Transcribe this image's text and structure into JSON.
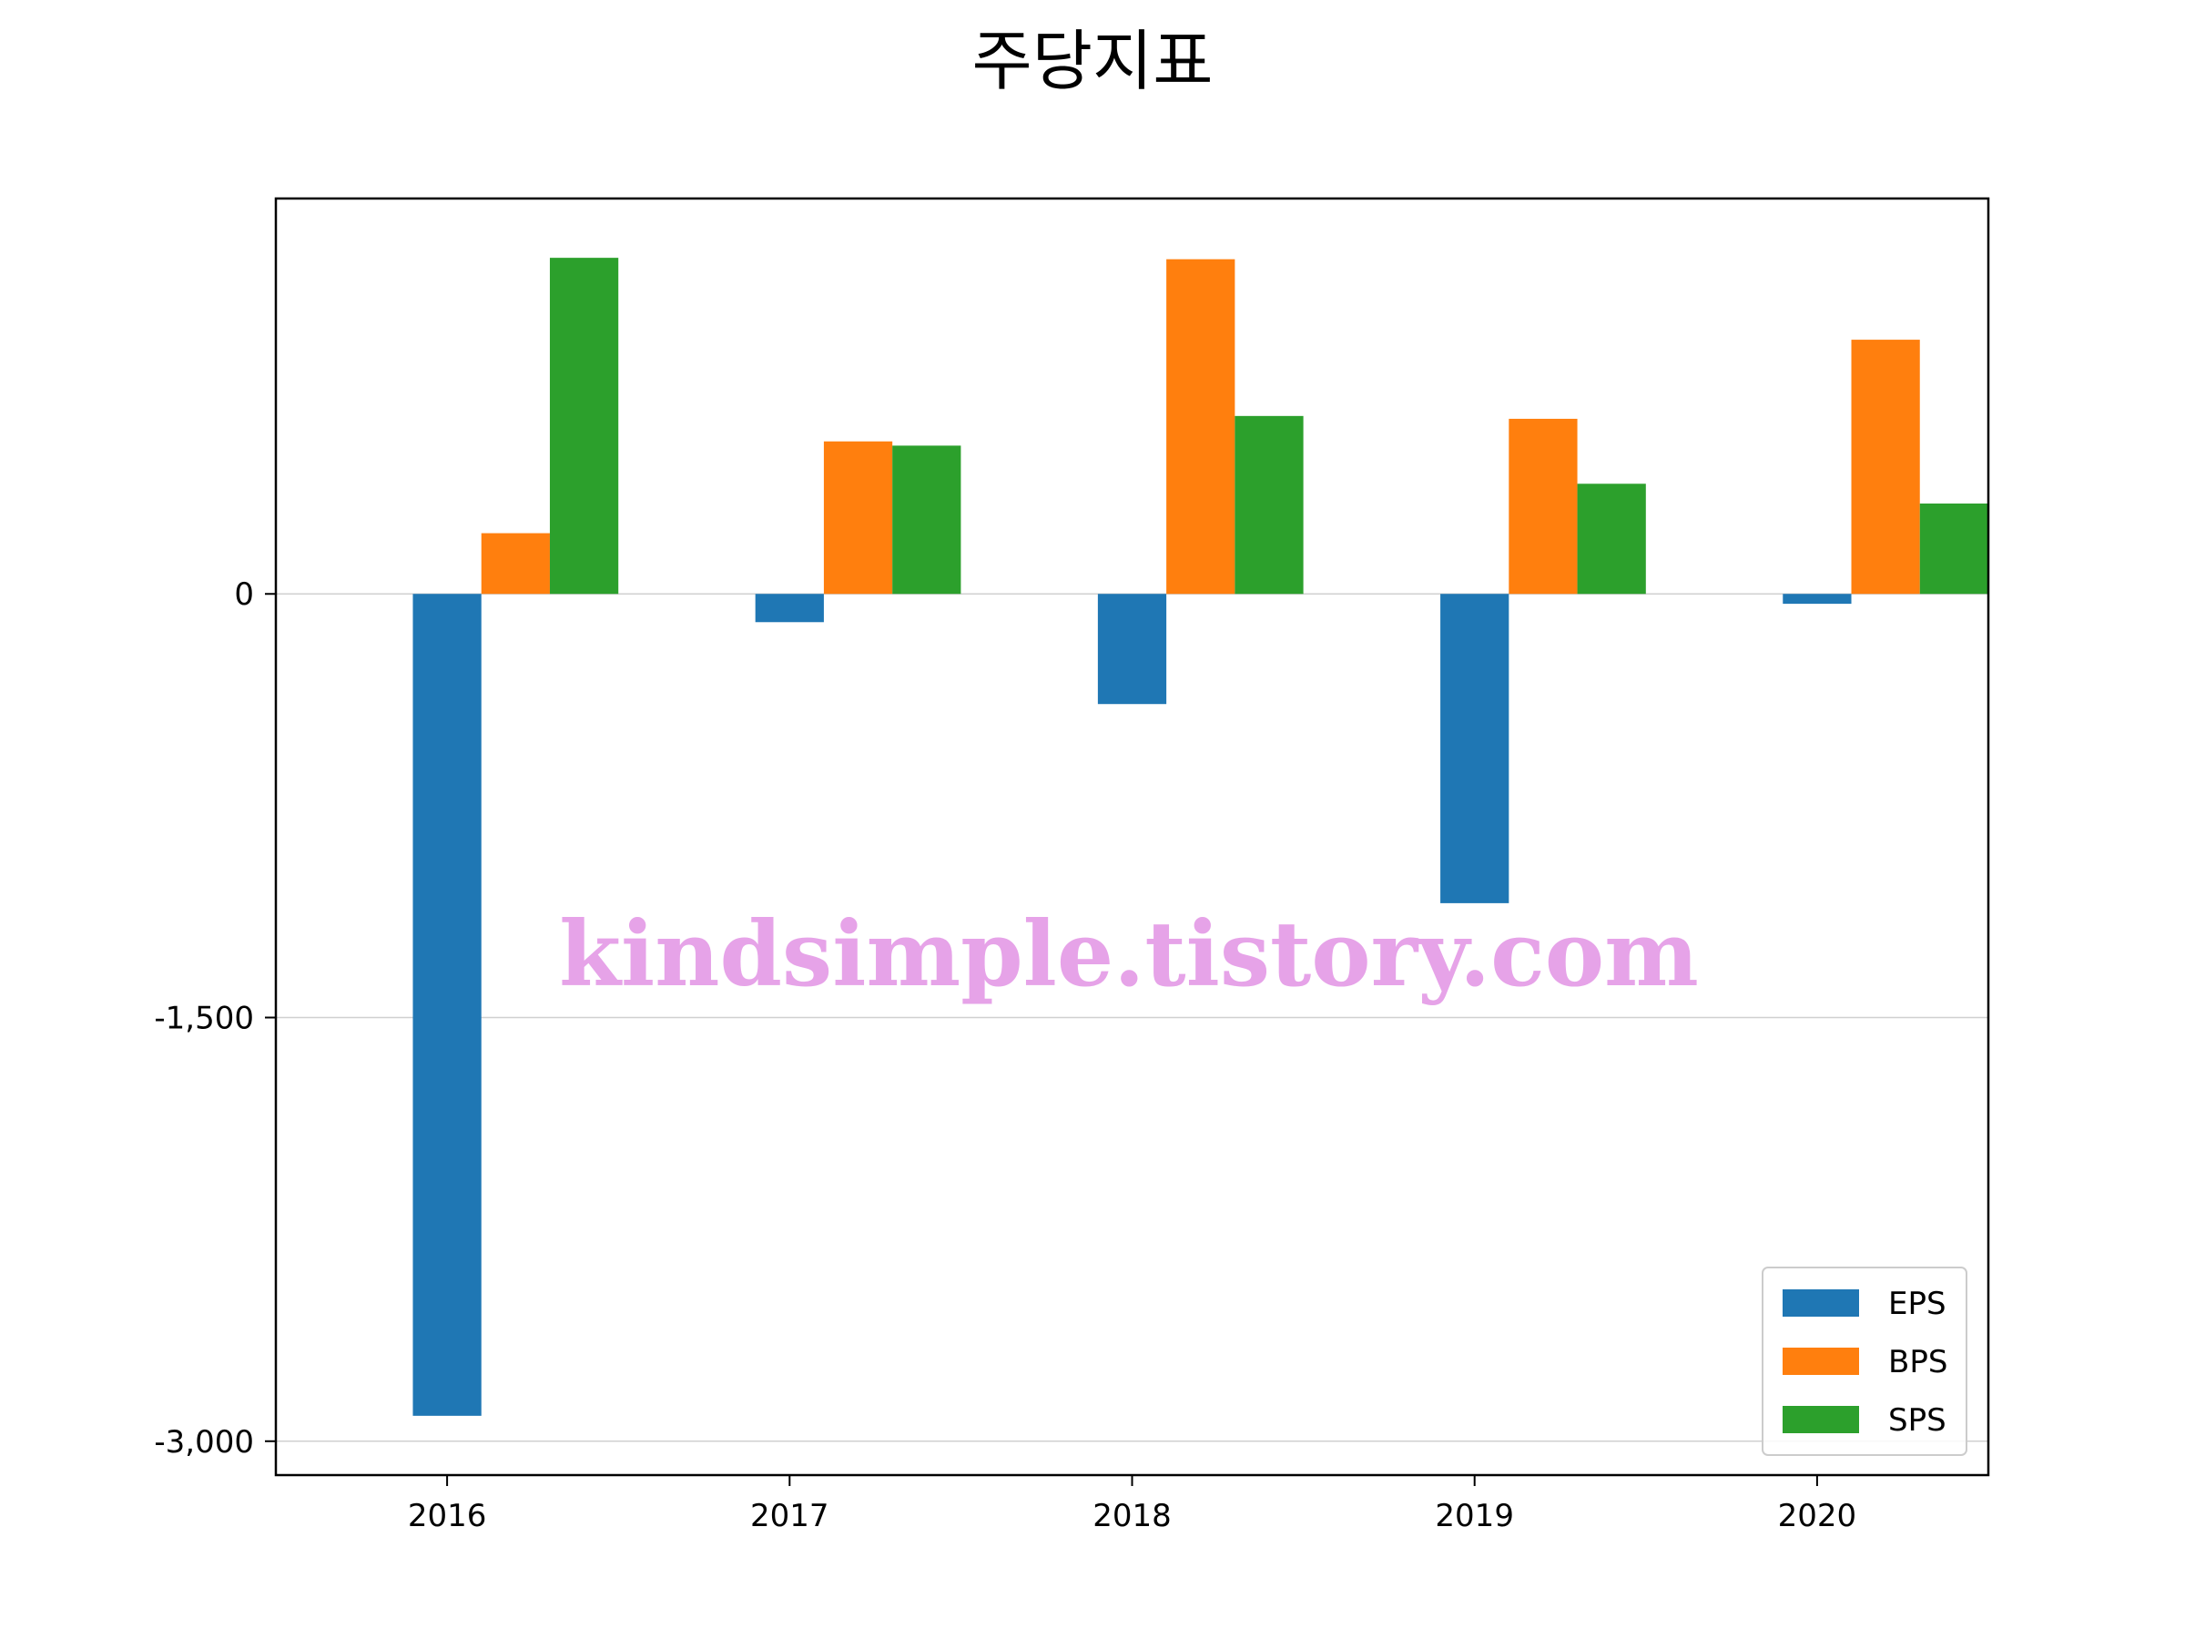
{
  "chart_data": {
    "type": "bar",
    "title": "주당지표",
    "xlabel": "",
    "ylabel": "",
    "categories": [
      "2016",
      "2017",
      "2018",
      "2019",
      "2020"
    ],
    "series": [
      {
        "name": "EPS",
        "color": "#1f77b4",
        "values": [
          -2910,
          -100,
          -390,
          -1095,
          -35
        ]
      },
      {
        "name": "BPS",
        "color": "#ff7f0e",
        "values": [
          215,
          540,
          1185,
          620,
          900
        ]
      },
      {
        "name": "SPS",
        "color": "#2ca02c",
        "values": [
          1190,
          525,
          630,
          390,
          320
        ]
      }
    ],
    "ylim": [
      -3120,
      1400
    ],
    "yticks": [
      0,
      -1500,
      -3000
    ],
    "ytick_labels": [
      "0",
      "-1,500",
      "-3,000"
    ],
    "grid": "horizontal",
    "legend_position": "lower-right"
  },
  "watermark": {
    "text": "kindsimple.tistory.com",
    "color": "#e6a3e8"
  }
}
